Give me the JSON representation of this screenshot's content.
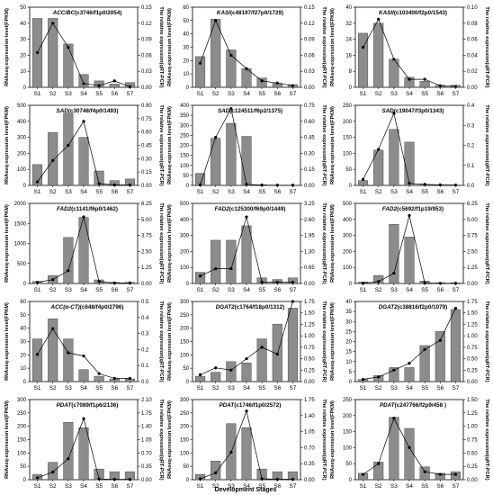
{
  "chart_data": [
    {
      "type": "bar",
      "gene": "ACC/BC",
      "id": "(c3746/f1p0/2054)",
      "categories": [
        "S1",
        "S2",
        "S3",
        "S4",
        "S5",
        "S6",
        "S7"
      ],
      "values": [
        43,
        43,
        27,
        8,
        4,
        2,
        3
      ],
      "line_values": [
        0.065,
        0.12,
        0.075,
        0.007,
        0.003,
        0.012,
        0.001
      ],
      "ylim": [
        0,
        50
      ],
      "yticks": [
        0,
        10,
        20,
        30,
        40,
        50
      ],
      "y2lim": [
        0,
        0.15
      ],
      "y2ticks": [
        "0.00",
        "0.03",
        "0.06",
        "0.09",
        "0.12",
        "0.15"
      ],
      "ylabel": "RNAseq-expression level(FPKM)",
      "y2label": "The relative expression(qRT-PCR)"
    },
    {
      "type": "bar",
      "gene": "KASI",
      "id": "(c48197/f27p0/1729)",
      "categories": [
        "S1",
        "S2",
        "S3",
        "S4",
        "S5",
        "S6",
        "S7"
      ],
      "values": [
        23,
        51,
        28,
        14,
        7,
        3,
        2
      ],
      "line_values": [
        0.045,
        0.125,
        0.06,
        0.035,
        0.012,
        0.008,
        0.003
      ],
      "ylim": [
        0,
        60
      ],
      "yticks": [
        0,
        10,
        20,
        30,
        40,
        50,
        60
      ],
      "y2lim": [
        0,
        0.15
      ],
      "y2ticks": [
        "0.00",
        "0.03",
        "0.06",
        "0.09",
        "0.12",
        "0.15"
      ],
      "ylabel": "RNAseq-expression level(FPKM)",
      "y2label": "The relative expression(qRT-PCR)"
    },
    {
      "type": "bar",
      "gene": "KASII",
      "id": "(c103400/f2p0/1543)",
      "categories": [
        "S1",
        "S2",
        "S3",
        "S4",
        "S5",
        "S6",
        "S7"
      ],
      "values": [
        27,
        32,
        14,
        5,
        3,
        1,
        1
      ],
      "line_values": [
        0.05,
        0.085,
        0.035,
        0.01,
        0.01,
        0.002,
        0.001
      ],
      "ylim": [
        0,
        40
      ],
      "yticks": [
        0,
        8,
        16,
        24,
        32,
        40
      ],
      "y2lim": [
        0,
        0.1
      ],
      "y2ticks": [
        "0.00",
        "0.02",
        "0.04",
        "0.06",
        "0.08",
        "0.10"
      ],
      "ylabel": "RNAseq-expression level(FPKM)",
      "y2label": "The relative expression(qRT-PCR)"
    },
    {
      "type": "bar",
      "gene": "SAD",
      "id": "(c30748/f4p0/1493)",
      "categories": [
        "S1",
        "S2",
        "S3",
        "S4",
        "S5",
        "S6",
        "S7"
      ],
      "values": [
        130,
        330,
        450,
        300,
        90,
        30,
        40
      ],
      "line_values": [
        0.04,
        0.28,
        0.45,
        0.72,
        0.02,
        0.005,
        0.005
      ],
      "ylim": [
        0,
        500
      ],
      "yticks": [
        0,
        100,
        200,
        300,
        400,
        500
      ],
      "y2lim": [
        0,
        0.9
      ],
      "y2ticks": [
        "0.00",
        "0.15",
        "0.30",
        "0.45",
        "0.60",
        "0.75",
        "0.90"
      ],
      "ylabel": "RNAseq-expression level(FPKM)",
      "y2label": "The relative expression(qRT-PCR)"
    },
    {
      "type": "bar",
      "gene": "SAD",
      "id": "(c124511/f6p2/1375)",
      "categories": [
        "S1",
        "S2",
        "S3",
        "S4",
        "S5",
        "S6",
        "S7"
      ],
      "values": [
        60,
        235,
        310,
        245,
        3,
        1,
        1
      ],
      "line_values": [
        0.005,
        0.45,
        0.72,
        0.01,
        0.003,
        0.002,
        0.002
      ],
      "ylim": [
        0,
        400
      ],
      "yticks": [
        0,
        50,
        100,
        150,
        200,
        250,
        300,
        350,
        400
      ],
      "y2lim": [
        0,
        0.75
      ],
      "y2ticks": [
        "0.00",
        "0.15",
        "0.30",
        "0.45",
        "0.60",
        "0.75"
      ],
      "ylabel": "RNAseq-expression level(FPKM)",
      "y2label": "The relative expression(qRT-PCR)"
    },
    {
      "type": "bar",
      "gene": "SAD",
      "id": "(c19047/f3p0/1343)",
      "categories": [
        "S1",
        "S2",
        "S3",
        "S4",
        "S5",
        "S6",
        "S7"
      ],
      "values": [
        15,
        110,
        175,
        135,
        3,
        1,
        1
      ],
      "line_values": [
        0.03,
        0.18,
        0.36,
        0.01,
        0.005,
        0.003,
        0.002
      ],
      "ylim": [
        0,
        250
      ],
      "yticks": [
        0,
        50,
        100,
        150,
        200,
        250
      ],
      "y2lim": [
        0,
        0.4
      ],
      "y2ticks": [
        "0.0",
        "0.1",
        "0.2",
        "0.3",
        "0.4"
      ],
      "ylabel": "RNAseq-expression level(FPKM)",
      "y2label": "The relative expression(qRT-PCR)"
    },
    {
      "type": "bar",
      "gene": "FAD2",
      "id": "(c1141/f6p0/1462)",
      "categories": [
        "S1",
        "S2",
        "S3",
        "S4",
        "S5",
        "S6",
        "S7"
      ],
      "values": [
        50,
        200,
        1150,
        1650,
        90,
        30,
        30
      ],
      "line_values": [
        0.1,
        0.3,
        1.0,
        5.2,
        0.15,
        0.05,
        0.05
      ],
      "ylim": [
        0,
        2000
      ],
      "yticks": [
        0,
        500,
        1000,
        1500,
        2000
      ],
      "y2lim": [
        0,
        6.25
      ],
      "y2ticks": [
        "0.00",
        "1.25",
        "2.50",
        "3.75",
        "5.00",
        "6.25"
      ],
      "ylabel": "RNAseq-expression level(FPKM)",
      "y2label": "The relative expression(qRT-PCR)"
    },
    {
      "type": "bar",
      "gene": "FAD2",
      "id": "(c125300/f69p0/1449)",
      "categories": [
        "S1",
        "S2",
        "S3",
        "S4",
        "S5",
        "S6",
        "S7"
      ],
      "values": [
        70,
        270,
        270,
        360,
        35,
        25,
        35
      ],
      "line_values": [
        0.3,
        0.6,
        0.6,
        2.7,
        0.05,
        0.05,
        0.05
      ],
      "ylim": [
        0,
        500
      ],
      "yticks": [
        0,
        100,
        200,
        300,
        400,
        500
      ],
      "y2lim": [
        0,
        3.25
      ],
      "y2ticks": [
        "0.00",
        "0.65",
        "1.30",
        "1.95",
        "2.60",
        "3.25"
      ],
      "ylabel": "RNAseq-expression level(FPKM)",
      "y2label": "The relative expression(qRT-PCR)"
    },
    {
      "type": "bar",
      "gene": "FAD2",
      "id": "(c5692/f1p19/953)",
      "categories": [
        "S1",
        "S2",
        "S3",
        "S4",
        "S5",
        "S6",
        "S7"
      ],
      "values": [
        10,
        50,
        370,
        290,
        15,
        5,
        5
      ],
      "line_values": [
        0.02,
        0.15,
        0.8,
        5.3,
        0.05,
        0.02,
        0.02
      ],
      "ylim": [
        0,
        500
      ],
      "yticks": [
        0,
        100,
        200,
        300,
        400,
        500
      ],
      "y2lim": [
        0,
        6.25
      ],
      "y2ticks": [
        "0.00",
        "1.25",
        "2.50",
        "3.75",
        "5.00",
        "6.25"
      ],
      "ylabel": "RNAseq-expression level(FPKM)",
      "y2label": "The relative expression(qRT-PCR)"
    },
    {
      "type": "bar",
      "gene": "ACC(α-CT)",
      "id": "(c648/f4p0/2796)",
      "categories": [
        "S1",
        "S2",
        "S3",
        "S4",
        "S5",
        "S6",
        "S7"
      ],
      "values": [
        32,
        47,
        32,
        9,
        4,
        2,
        2
      ],
      "line_values": [
        0.17,
        0.33,
        0.18,
        0.16,
        0.05,
        0.02,
        0.02
      ],
      "ylim": [
        0,
        60
      ],
      "yticks": [
        0,
        10,
        20,
        30,
        40,
        50,
        60
      ],
      "y2lim": [
        0,
        0.5
      ],
      "y2ticks": [
        "0.0",
        "0.1",
        "0.2",
        "0.3",
        "0.4",
        "0.5"
      ],
      "ylabel": "RNAseq-expression level(FPKM)",
      "y2label": "The relative expression(qRT-PCR)"
    },
    {
      "type": "bar",
      "gene": "DGAT2",
      "id": "(c1764/f18p0/1312)",
      "categories": [
        "S1",
        "S2",
        "S3",
        "S4",
        "S5",
        "S6",
        "S7"
      ],
      "values": [
        20,
        35,
        75,
        70,
        160,
        215,
        275
      ],
      "line_values": [
        0.15,
        0.3,
        0.25,
        0.5,
        0.75,
        0.6,
        1.75
      ],
      "ylim": [
        0,
        300
      ],
      "yticks": [
        0,
        50,
        100,
        150,
        200,
        250,
        300
      ],
      "y2lim": [
        0,
        1.75
      ],
      "y2ticks": [
        "0.00",
        "0.25",
        "0.50",
        "0.75",
        "1.00",
        "1.25",
        "1.50",
        "1.75"
      ],
      "ylabel": "RNAseq-expression level(FPKM)",
      "y2label": "The relative expression(qRT-PCR)"
    },
    {
      "type": "bar",
      "gene": "DGAT2",
      "id": "(c38816/f2p0/1079)",
      "categories": [
        "S1",
        "S2",
        "S3",
        "S4",
        "S5",
        "S6",
        "S7"
      ],
      "values": [
        1,
        3,
        7,
        7,
        18,
        25,
        36
      ],
      "line_values": [
        0.05,
        0.1,
        0.25,
        0.4,
        0.7,
        0.9,
        1.6
      ],
      "ylim": [
        0,
        40
      ],
      "yticks": [
        0,
        5,
        10,
        15,
        20,
        25,
        30,
        35,
        40
      ],
      "y2lim": [
        0,
        1.75
      ],
      "y2ticks": [
        "0.00",
        "0.25",
        "0.50",
        "0.75",
        "1.00",
        "1.25",
        "1.50",
        "1.75"
      ],
      "ylabel": "RNAseq-expression level(FPKM)",
      "y2label": "The relative expression(qRT-PCR)"
    },
    {
      "type": "bar",
      "gene": "PDAT",
      "id": "(c7089/f1p6/2136)",
      "categories": [
        "S1",
        "S2",
        "S3",
        "S4",
        "S5",
        "S6",
        "S7"
      ],
      "values": [
        20,
        65,
        215,
        195,
        40,
        30,
        30
      ],
      "line_values": [
        0.05,
        0.2,
        0.55,
        1.6,
        0.02,
        0.01,
        0.01
      ],
      "ylim": [
        0,
        300
      ],
      "yticks": [
        0,
        50,
        100,
        150,
        200,
        250,
        300
      ],
      "y2lim": [
        0,
        2.1
      ],
      "y2ticks": [
        "0.00",
        "0.35",
        "0.70",
        "1.05",
        "1.40",
        "1.75",
        "2.10"
      ],
      "ylabel": "RNAseq-expression level(FPKM)",
      "y2label": "The relative expression(qRT-PCR)"
    },
    {
      "type": "bar",
      "gene": "PDAT",
      "id": "(c1746/f1p0/2572)",
      "categories": [
        "S1",
        "S2",
        "S3",
        "S4",
        "S5",
        "S6",
        "S7"
      ],
      "values": [
        20,
        70,
        210,
        195,
        40,
        30,
        30
      ],
      "line_values": [
        0.02,
        0.15,
        0.6,
        1.5,
        0.02,
        0.01,
        0.01
      ],
      "ylim": [
        0,
        300
      ],
      "yticks": [
        0,
        50,
        100,
        150,
        200,
        250,
        300
      ],
      "y2lim": [
        0,
        1.75
      ],
      "y2ticks": [
        "0.00",
        "0.35",
        "0.70",
        "1.05",
        "1.40",
        "1.75"
      ],
      "ylabel": "RNAseq-expression level(FPKM)",
      "y2label": "The relative expression(qRT-PCR)"
    },
    {
      "type": "bar",
      "gene": "PDAT",
      "id": "(c247766/f2p9/458 )",
      "categories": [
        "S1",
        "S2",
        "S3",
        "S4",
        "S5",
        "S6",
        "S7"
      ],
      "values": [
        20,
        55,
        195,
        160,
        40,
        20,
        25
      ],
      "line_values": [
        0.1,
        0.3,
        1.15,
        0.6,
        0.15,
        0.1,
        0.1
      ],
      "ylim": [
        0,
        250
      ],
      "yticks": [
        0,
        50,
        100,
        150,
        200,
        250
      ],
      "y2lim": [
        0,
        1.5
      ],
      "y2ticks": [
        "0.00",
        "0.25",
        "0.50",
        "0.75",
        "1.00",
        "1.25",
        "1.50"
      ],
      "ylabel": "RNAseq-expression level(FPKM)",
      "y2label": "The relative expression(qRT-PCR)"
    }
  ],
  "xlabel": "Development Stages"
}
